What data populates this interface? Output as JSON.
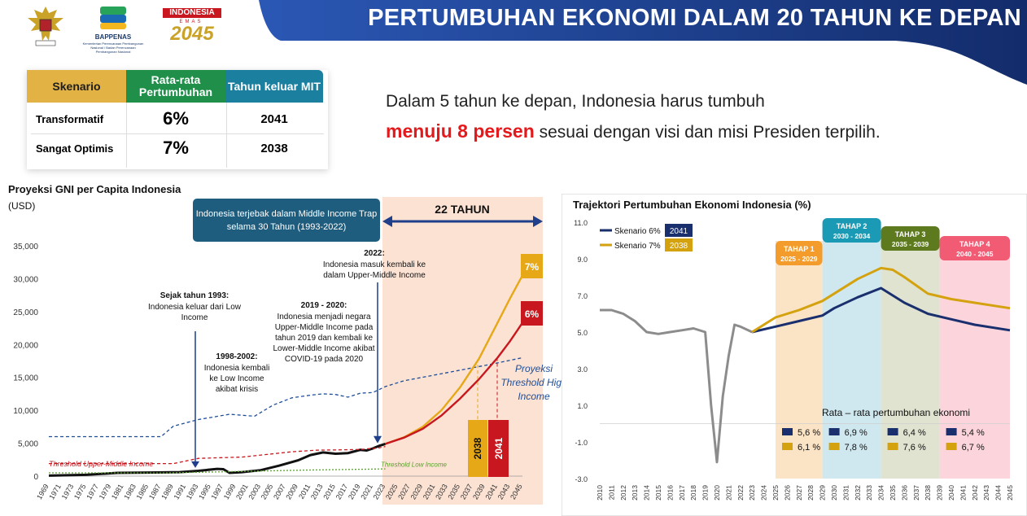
{
  "header": {
    "title": "PERTUMBUHAN EKONOMI DALAM 20 TAHUN KE DEPAN",
    "logos": [
      {
        "icon": "garuda-emblem-icon"
      },
      {
        "icon": "bappenas-logo-icon",
        "label": "BAPPENAS",
        "caption": "Kementerian Perencanaan Pembangunan Nasional / Badan Perencanaan Pembangunan Nasional"
      },
      {
        "icon": "indonesia-emas-2045-logo-icon",
        "label": "INDONESIA",
        "sub": "EMAS",
        "year": "2045"
      }
    ]
  },
  "scenario_table": {
    "headers": [
      "Skenario",
      "Rata-rata Pertumbuhan",
      "Tahun keluar MIT"
    ],
    "rows": [
      {
        "scenario": "Transformatif",
        "growth": "6%",
        "year": "2041"
      },
      {
        "scenario": "Sangat Optimis",
        "growth": "7%",
        "year": "2038"
      }
    ]
  },
  "intro": {
    "line1": "Dalam 5 tahun ke depan, Indonesia harus tumbuh",
    "highlight": "menuju 8 persen",
    "line2_rest": " sesuai dengan visi dan misi Presiden terpilih."
  },
  "colors": {
    "navy": "#1f3f8a",
    "green": "#1a8a4a",
    "teal": "#1b7fa0",
    "gold": "#e6a817",
    "red": "#c8171e",
    "orange": "#f39c2b",
    "header_navy": "#1a3a7c"
  },
  "chart_data": [
    {
      "type": "line",
      "title": "Proyeksi GNI per Capita Indonesia",
      "ylabel": "(USD)",
      "x_ticks": [
        "1969",
        "1971",
        "1973",
        "1975",
        "1977",
        "1979",
        "1981",
        "1983",
        "1985",
        "1987",
        "1989",
        "1991",
        "1993",
        "1995",
        "1997",
        "1999",
        "2001",
        "2003",
        "2005",
        "2007",
        "2009",
        "2011",
        "2013",
        "2015",
        "2017",
        "2019",
        "2021",
        "2023",
        "2025",
        "2027",
        "2029",
        "2031",
        "2033",
        "2035",
        "2037",
        "2039",
        "2041",
        "2043",
        "2045"
      ],
      "y_ticks": [
        "35,000",
        "30,000",
        "25,000",
        "20,000",
        "15,000",
        "10,000",
        "5,000",
        "0"
      ],
      "ylim": [
        0,
        35000
      ],
      "xlim": [
        1969,
        2045
      ],
      "series": [
        {
          "key": "gni_actual",
          "color": "#111111",
          "x": [
            1969,
            1975,
            1980,
            1985,
            1990,
            1993,
            1996,
            1997,
            1998,
            2000,
            2003,
            2006,
            2009,
            2011,
            2013,
            2015,
            2017,
            2019,
            2020,
            2021,
            2022,
            2023
          ],
          "y": [
            80,
            200,
            500,
            550,
            600,
            800,
            1100,
            1050,
            500,
            600,
            900,
            1600,
            2400,
            3200,
            3600,
            3400,
            3500,
            4000,
            3900,
            4200,
            4600,
            4900
          ]
        },
        {
          "key": "threshold_high_income",
          "color": "#1f4e99",
          "dash": "4,3",
          "x": [
            1969,
            1987,
            1989,
            1993,
            1998,
            2002,
            2005,
            2008,
            2011,
            2013,
            2015,
            2017,
            2019,
            2021,
            2023,
            2026,
            2030,
            2035,
            2040,
            2045
          ],
          "y": [
            6000,
            6000,
            7600,
            8600,
            9400,
            9100,
            10800,
            11900,
            12300,
            12500,
            12400,
            12000,
            12600,
            12700,
            13600,
            14500,
            15200,
            16100,
            17000,
            18000
          ]
        },
        {
          "key": "threshold_upper_middle",
          "color": "#c8171e",
          "dash": "4,3",
          "x": [
            1969,
            1989,
            1993,
            2000,
            2008,
            2012,
            2016,
            2019,
            2022,
            2023
          ],
          "y": [
            1900,
            1900,
            2700,
            2900,
            3700,
            3950,
            4000,
            4050,
            4300,
            4500
          ]
        },
        {
          "key": "threshold_low",
          "color": "#5aa02c",
          "dash": "2,2",
          "x": [
            1969,
            1988,
            2000,
            2010,
            2020,
            2023
          ],
          "y": [
            500,
            500,
            720,
            920,
            1050,
            1100
          ]
        },
        {
          "key": "proj_7",
          "color": "#e6a817",
          "x": [
            2023,
            2026,
            2029,
            2032,
            2035,
            2038,
            2041,
            2043,
            2045
          ],
          "y": [
            4900,
            5900,
            7500,
            10000,
            13500,
            17800,
            23300,
            27000,
            30500
          ]
        },
        {
          "key": "proj_6",
          "color": "#c8171e",
          "x": [
            2023,
            2026,
            2029,
            2032,
            2035,
            2038,
            2041,
            2043,
            2045
          ],
          "y": [
            4900,
            5850,
            7200,
            9200,
            11800,
            14700,
            18000,
            20500,
            23300
          ]
        }
      ],
      "labels": {
        "threshold_upper_middle": "Threshold Upper-Middle Income",
        "threshold_low": "Threshold Low Income",
        "threshold_high": "Proyeksi Threshold High Income",
        "proj_7": "7%",
        "proj_6": "6%"
      },
      "annotations": {
        "trap_box": "Indonesia terjebak dalam Middle Income Trap selama 30 Tahun (1993-2022)",
        "span": "22 TAHUN",
        "a1993_head": "Sejak tahun 1993:",
        "a1993": "Indonesia keluar dari Low Income",
        "a1998_head": "1998-2002:",
        "a1998": "Indonesia kembali ke Low Income akibat krisis",
        "a2019_head": "2019 - 2020:",
        "a2019": "Indonesia menjadi negara Upper-Middle Income pada tahun 2019 dan kembali ke Lower-Middle Income akibat COVID-19 pada 2020",
        "a2022_head": "2022:",
        "a2022": "Indonesia masuk kembali ke dalam Upper-Middle Income",
        "exit_7": "2038",
        "exit_6": "2041"
      }
    },
    {
      "type": "line",
      "title": "Trajektori Pertumbuhan Ekonomi Indonesia (%)",
      "y_ticks": [
        "11.0",
        "9.0",
        "7.0",
        "5.0",
        "3.0",
        "1.0",
        "-1.0",
        "-3.0"
      ],
      "ylim": [
        -3,
        11
      ],
      "xlim": [
        2010,
        2045
      ],
      "x_ticks": [
        "2010",
        "2011",
        "2012",
        "2013",
        "2014",
        "2015",
        "2016",
        "2017",
        "2018",
        "2019",
        "2020",
        "2021",
        "2022",
        "2023",
        "2024",
        "2025",
        "2026",
        "2027",
        "2028",
        "2029",
        "2030",
        "2031",
        "2032",
        "2033",
        "2034",
        "2035",
        "2036",
        "2037",
        "2038",
        "2039",
        "2040",
        "2041",
        "2042",
        "2043",
        "2044",
        "2045"
      ],
      "legend": [
        {
          "label": "Skenario 6%",
          "badge": "2041",
          "color": "#1a2f6e"
        },
        {
          "label": "Skenario 7%",
          "badge": "2038",
          "color": "#d4a20f"
        }
      ],
      "series": [
        {
          "name": "historical",
          "color": "#8c8c8c",
          "x": [
            2010,
            2011,
            2012,
            2013,
            2014,
            2015,
            2016,
            2017,
            2018,
            2019,
            2019.5,
            2020,
            2020.5,
            2021,
            2021.5,
            2022,
            2023
          ],
          "y": [
            6.2,
            6.2,
            6.0,
            5.6,
            5.0,
            4.9,
            5.0,
            5.1,
            5.2,
            5.0,
            1.0,
            -2.1,
            1.5,
            3.7,
            5.4,
            5.3,
            5.0
          ]
        },
        {
          "name": "Skenario 6%",
          "color": "#1a2f6e",
          "x": [
            2023,
            2025,
            2027,
            2029,
            2030,
            2032,
            2034,
            2035,
            2036,
            2038,
            2040,
            2042,
            2045
          ],
          "y": [
            5.0,
            5.3,
            5.6,
            5.9,
            6.3,
            6.9,
            7.4,
            7.0,
            6.6,
            6.0,
            5.7,
            5.4,
            5.1
          ]
        },
        {
          "name": "Skenario 7%",
          "color": "#d4a20f",
          "x": [
            2023,
            2025,
            2027,
            2029,
            2030,
            2032,
            2034,
            2035,
            2036,
            2038,
            2040,
            2042,
            2045
          ],
          "y": [
            5.0,
            5.8,
            6.2,
            6.7,
            7.1,
            7.9,
            8.5,
            8.4,
            8.0,
            7.1,
            6.8,
            6.6,
            6.3
          ]
        }
      ],
      "phases": [
        {
          "label": "TAHAP 1",
          "range": "2025 - 2029",
          "color": "#f39c2b",
          "band": "#fbe3c6",
          "avg6": "5,6 %",
          "avg7": "6,1 %",
          "x0": 2025,
          "x1": 2029
        },
        {
          "label": "TAHAP 2",
          "range": "2030 - 2034",
          "color": "#1b9ab5",
          "band": "#cfe8ef",
          "avg6": "6,9 %",
          "avg7": "7,8 %",
          "x0": 2029,
          "x1": 2034
        },
        {
          "label": "TAHAP 3",
          "range": "2035 - 2039",
          "color": "#5d7a1f",
          "band": "#dfe3cf",
          "avg6": "6,4 %",
          "avg7": "7,6 %",
          "x0": 2034,
          "x1": 2039
        },
        {
          "label": "TAHAP 4",
          "range": "2040 - 2045",
          "color": "#f25b74",
          "band": "#fcd5dc",
          "avg6": "5,4 %",
          "avg7": "6,7 %",
          "x0": 2039,
          "x1": 2045
        }
      ],
      "avg_title": "Rata – rata pertumbuhan ekonomi"
    }
  ]
}
